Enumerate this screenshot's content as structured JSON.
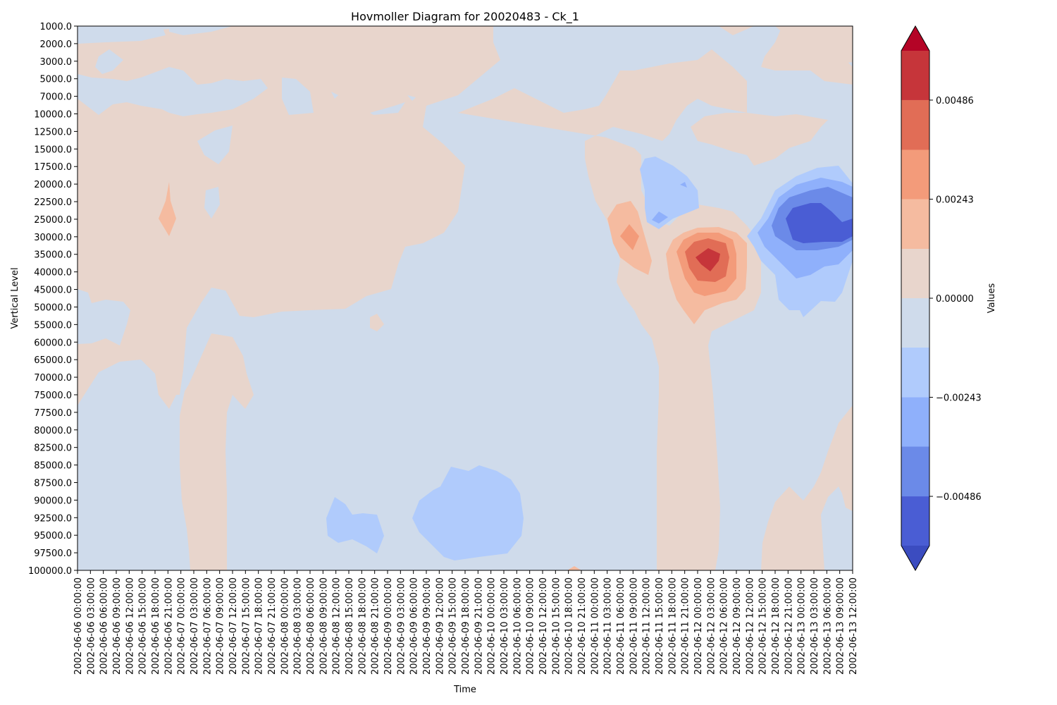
{
  "chart_data": {
    "type": "heatmap",
    "subtype": "filled-contour",
    "title": "Hovmoller Diagram for 20020483 - Ck_1",
    "xlabel": "Time",
    "ylabel": "Vertical Level",
    "colorbar_label": "Values",
    "colormap": "coolwarm",
    "colorbar_extend": "both",
    "y_axis_inverted": true,
    "grid": false,
    "y_levels": [
      "1000.0",
      "2000.0",
      "3000.0",
      "5000.0",
      "7000.0",
      "10000.0",
      "12500.0",
      "15000.0",
      "17500.0",
      "20000.0",
      "22500.0",
      "25000.0",
      "30000.0",
      "35000.0",
      "40000.0",
      "45000.0",
      "50000.0",
      "55000.0",
      "60000.0",
      "65000.0",
      "70000.0",
      "75000.0",
      "77500.0",
      "80000.0",
      "82500.0",
      "85000.0",
      "87500.0",
      "90000.0",
      "92500.0",
      "95000.0",
      "97500.0",
      "100000.0"
    ],
    "x_times": [
      "2002-06-06 00:00:00",
      "2002-06-06 03:00:00",
      "2002-06-06 06:00:00",
      "2002-06-06 09:00:00",
      "2002-06-06 12:00:00",
      "2002-06-06 15:00:00",
      "2002-06-06 18:00:00",
      "2002-06-06 21:00:00",
      "2002-06-07 00:00:00",
      "2002-06-07 03:00:00",
      "2002-06-07 06:00:00",
      "2002-06-07 09:00:00",
      "2002-06-07 12:00:00",
      "2002-06-07 15:00:00",
      "2002-06-07 18:00:00",
      "2002-06-07 21:00:00",
      "2002-06-08 00:00:00",
      "2002-06-08 03:00:00",
      "2002-06-08 06:00:00",
      "2002-06-08 09:00:00",
      "2002-06-08 12:00:00",
      "2002-06-08 15:00:00",
      "2002-06-08 18:00:00",
      "2002-06-08 21:00:00",
      "2002-06-09 00:00:00",
      "2002-06-09 03:00:00",
      "2002-06-09 06:00:00",
      "2002-06-09 09:00:00",
      "2002-06-09 12:00:00",
      "2002-06-09 15:00:00",
      "2002-06-09 18:00:00",
      "2002-06-09 21:00:00",
      "2002-06-10 00:00:00",
      "2002-06-10 03:00:00",
      "2002-06-10 06:00:00",
      "2002-06-10 09:00:00",
      "2002-06-10 12:00:00",
      "2002-06-10 15:00:00",
      "2002-06-10 18:00:00",
      "2002-06-10 21:00:00",
      "2002-06-11 00:00:00",
      "2002-06-11 03:00:00",
      "2002-06-11 06:00:00",
      "2002-06-11 09:00:00",
      "2002-06-11 12:00:00",
      "2002-06-11 15:00:00",
      "2002-06-11 18:00:00",
      "2002-06-11 21:00:00",
      "2002-06-12 00:00:00",
      "2002-06-12 03:00:00",
      "2002-06-12 06:00:00",
      "2002-06-12 09:00:00",
      "2002-06-12 12:00:00",
      "2002-06-12 15:00:00",
      "2002-06-12 18:00:00",
      "2002-06-12 21:00:00",
      "2002-06-13 00:00:00",
      "2002-06-13 03:00:00",
      "2002-06-13 06:00:00",
      "2002-06-13 09:00:00",
      "2002-06-13 12:00:00"
    ],
    "colorbar_ticks": [
      {
        "value": 0.00486,
        "label": "0.00486"
      },
      {
        "value": 0.00243,
        "label": "0.00243"
      },
      {
        "value": 0.0,
        "label": "0.00000"
      },
      {
        "value": -0.00243,
        "label": "−0.00243"
      },
      {
        "value": -0.00486,
        "label": "−0.00486"
      }
    ],
    "colorbar_range": [
      -0.00607,
      0.00607
    ],
    "contour_bands": [
      {
        "range": [
          -0.00607,
          -0.00486
        ],
        "color": "#4a5dd4"
      },
      {
        "range": [
          -0.00486,
          -0.00364
        ],
        "color": "#6b8ae8"
      },
      {
        "range": [
          -0.00364,
          -0.00243
        ],
        "color": "#8fb0fb"
      },
      {
        "range": [
          -0.00243,
          -0.00121
        ],
        "color": "#b0cbfc"
      },
      {
        "range": [
          -0.00121,
          0.0
        ],
        "color": "#cfdbeb"
      },
      {
        "range": [
          0.0,
          0.00121
        ],
        "color": "#e8d5cc"
      },
      {
        "range": [
          0.00121,
          0.00243
        ],
        "color": "#f5bba0"
      },
      {
        "range": [
          0.00243,
          0.00364
        ],
        "color": "#f39b7a"
      },
      {
        "range": [
          0.00364,
          0.00486
        ],
        "color": "#e16d56"
      },
      {
        "range": [
          0.00486,
          0.00607
        ],
        "color": "#c6353a"
      }
    ],
    "extend_colors": {
      "over": "#b40426",
      "under": "#3b4cc0"
    },
    "features": [
      {
        "kind": "negative-minimum",
        "time": "2002-06-13 03:00:00",
        "level": "25000.0",
        "band": [
          -0.00607,
          -0.00486
        ]
      },
      {
        "kind": "positive-maximum",
        "time": "2002-06-12 03:00:00",
        "level": "35000.0",
        "band": [
          0.00486,
          0.00607
        ]
      },
      {
        "kind": "positive-maximum",
        "time": "2002-06-11 09:00:00",
        "level": "30000.0",
        "band": [
          0.00243,
          0.00364
        ]
      },
      {
        "kind": "negative-pocket",
        "time": "2002-06-09 18:00:00",
        "level": "92500.0",
        "band": [
          -0.00243,
          -0.00121
        ]
      },
      {
        "kind": "negative-pocket",
        "time": "2002-06-08 15:00:00",
        "level": "92500.0",
        "band": [
          -0.00243,
          -0.00121
        ]
      }
    ]
  }
}
